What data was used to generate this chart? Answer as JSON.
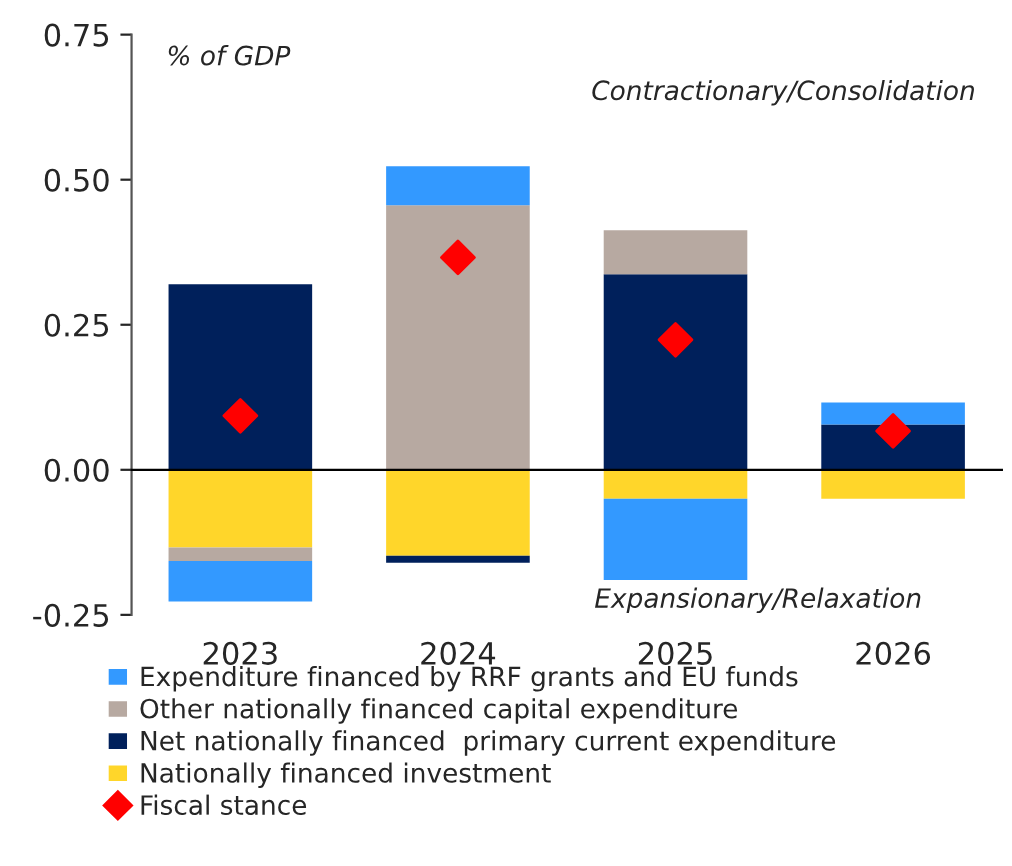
{
  "chart_data": {
    "type": "bar",
    "stacked": true,
    "categories": [
      "2023",
      "2024",
      "2025",
      "2026"
    ],
    "series": [
      {
        "name": "Nationally financed investment",
        "color": "#ffd62a",
        "values": [
          -0.134,
          -0.148,
          -0.05,
          -0.05
        ]
      },
      {
        "name": "Net nationally financed  primary current expenditure",
        "color": "#00205b",
        "values": [
          0.32,
          -0.012,
          0.337,
          0.078
        ]
      },
      {
        "name": "Other nationally financed capital expenditure",
        "color": "#b7a9a1",
        "values": [
          -0.023,
          0.456,
          0.076,
          0
        ]
      },
      {
        "name": "Expenditure financed by RRF grants and EU funds",
        "color": "#3399ff",
        "values": [
          -0.07,
          0.067,
          -0.14,
          0.038
        ]
      },
      {
        "name": "Fiscal stance",
        "type": "scatter",
        "color": "#ff0000",
        "marker": "diamond",
        "values": [
          0.093,
          0.366,
          0.224,
          0.067
        ]
      }
    ],
    "ylim": [
      -0.25,
      0.75
    ],
    "yticks": [
      {
        "value": -0.25,
        "label": "-0.25"
      },
      {
        "value": 0,
        "label": "0.00"
      },
      {
        "value": 0.25,
        "label": "0.25"
      },
      {
        "value": 0.5,
        "label": "0.50"
      },
      {
        "value": 0.75,
        "label": "0.75"
      }
    ],
    "annotations": [
      "% of GDP",
      "Contractionary/Consolidation",
      "Expansionary/Relaxation"
    ],
    "legend": "bottom"
  }
}
